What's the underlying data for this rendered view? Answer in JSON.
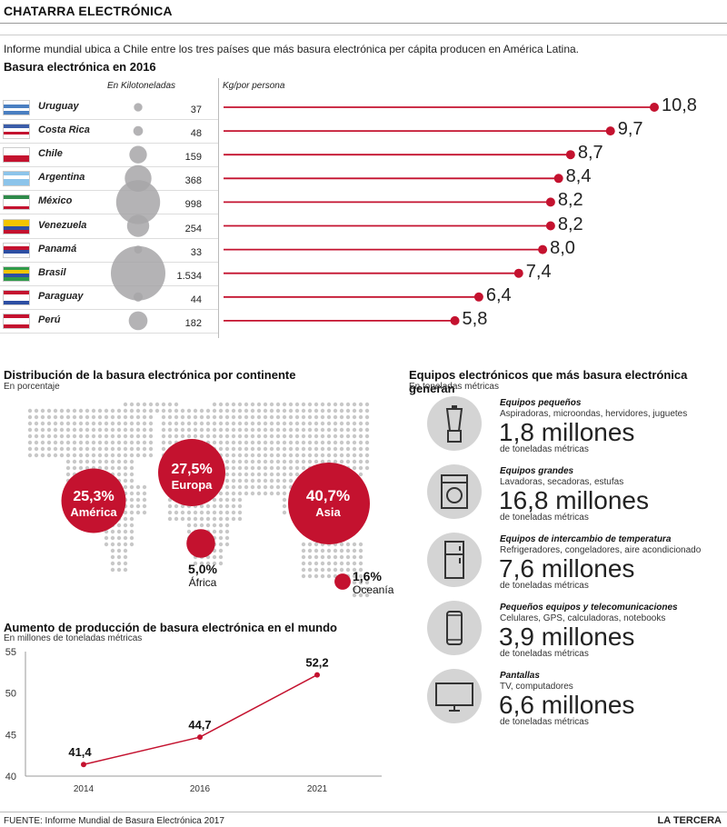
{
  "header": {
    "title": "CHATARRA ELECTRÓNICA",
    "intro": "Informe mundial ubica a Chile entre los tres países que más basura electrónica per cápita producen en América Latina."
  },
  "table": {
    "title": "Basura electrónica en 2016",
    "col_kilo": "En Kilotoneladas",
    "col_kg": "Kg/por persona",
    "accent": "#c4122f",
    "bubble_color": "#a7a6a8",
    "rows": [
      {
        "country": "Uruguay",
        "kilo": "37",
        "kilo_value": 37,
        "kg": "10,8",
        "kg_value": 10.8
      },
      {
        "country": "Costa Rica",
        "kilo": "48",
        "kilo_value": 48,
        "kg": "9,7",
        "kg_value": 9.7
      },
      {
        "country": "Chile",
        "kilo": "159",
        "kilo_value": 159,
        "kg": "8,7",
        "kg_value": 8.7
      },
      {
        "country": "Argentina",
        "kilo": "368",
        "kilo_value": 368,
        "kg": "8,4",
        "kg_value": 8.4
      },
      {
        "country": "México",
        "kilo": "998",
        "kilo_value": 998,
        "kg": "8,2",
        "kg_value": 8.2
      },
      {
        "country": "Venezuela",
        "kilo": "254",
        "kilo_value": 254,
        "kg": "8,2",
        "kg_value": 8.2
      },
      {
        "country": "Panamá",
        "kilo": "33",
        "kilo_value": 33,
        "kg": "8,0",
        "kg_value": 8.0
      },
      {
        "country": "Brasil",
        "kilo": "1.534",
        "kilo_value": 1534,
        "kg": "7,4",
        "kg_value": 7.4
      },
      {
        "country": "Paraguay",
        "kilo": "44",
        "kilo_value": 44,
        "kg": "6,4",
        "kg_value": 6.4
      },
      {
        "country": "Perú",
        "kilo": "182",
        "kilo_value": 182,
        "kg": "5,8",
        "kg_value": 5.8
      }
    ]
  },
  "map": {
    "title": "Distribución de la basura electrónica por continente",
    "subtitle": "En porcentaje",
    "continents": [
      {
        "pct": "25,3%",
        "name": "América",
        "value": 25.3
      },
      {
        "pct": "27,5%",
        "name": "Europa",
        "value": 27.5
      },
      {
        "pct": "40,7%",
        "name": "Asia",
        "value": 40.7
      },
      {
        "pct": "5,0%",
        "name": "África",
        "value": 5.0
      },
      {
        "pct": "1,6%",
        "name": "Oceanía",
        "value": 1.6
      }
    ]
  },
  "devices": {
    "title": "Equipos electrónicos que más basura electrónica generan",
    "subtitle": "En toneladas métricas",
    "items": [
      {
        "icon": "blender-icon",
        "title": "Equipos pequeños",
        "desc": "Aspiradoras, microondas, hervidores, juguetes",
        "big": "1,8 millones",
        "unit": "de toneladas métricas"
      },
      {
        "icon": "washing-machine-icon",
        "title": "Equipos grandes",
        "desc": "Lavadoras, secadoras, estufas",
        "big": "16,8 millones",
        "unit": "de toneladas métricas"
      },
      {
        "icon": "refrigerator-icon",
        "title": "Equipos de intercambio de temperatura",
        "desc": "Refrigeradores, congeladores, aire acondicionado",
        "big": "7,6 millones",
        "unit": "de toneladas métricas"
      },
      {
        "icon": "phone-icon",
        "title": "Pequeños equipos y telecomunicaciones",
        "desc": "Celulares, GPS, calculadoras, notebooks",
        "big": "3,9 millones",
        "unit": "de toneladas métricas"
      },
      {
        "icon": "tv-monitor-icon",
        "title": "Pantallas",
        "desc": "TV, computadores",
        "big": "6,6 millones",
        "unit": "de toneladas métricas"
      }
    ]
  },
  "chart_data": {
    "type": "line",
    "title": "Aumento de producción de basura electrónica en el mundo",
    "subtitle": "En millones de toneladas métricas",
    "x": [
      "2014",
      "2016",
      "2021"
    ],
    "y": [
      41.4,
      44.7,
      52.2
    ],
    "labels": [
      "41,4",
      "44,7",
      "52,2"
    ],
    "ylim": [
      40,
      55
    ],
    "yticks": [
      "40",
      "45",
      "50",
      "55"
    ],
    "grid": false,
    "color": "#c4122f"
  },
  "footer": {
    "source": "FUENTE: Informe Mundial de Basura Electrónica 2017",
    "brand": "LA TERCERA"
  }
}
